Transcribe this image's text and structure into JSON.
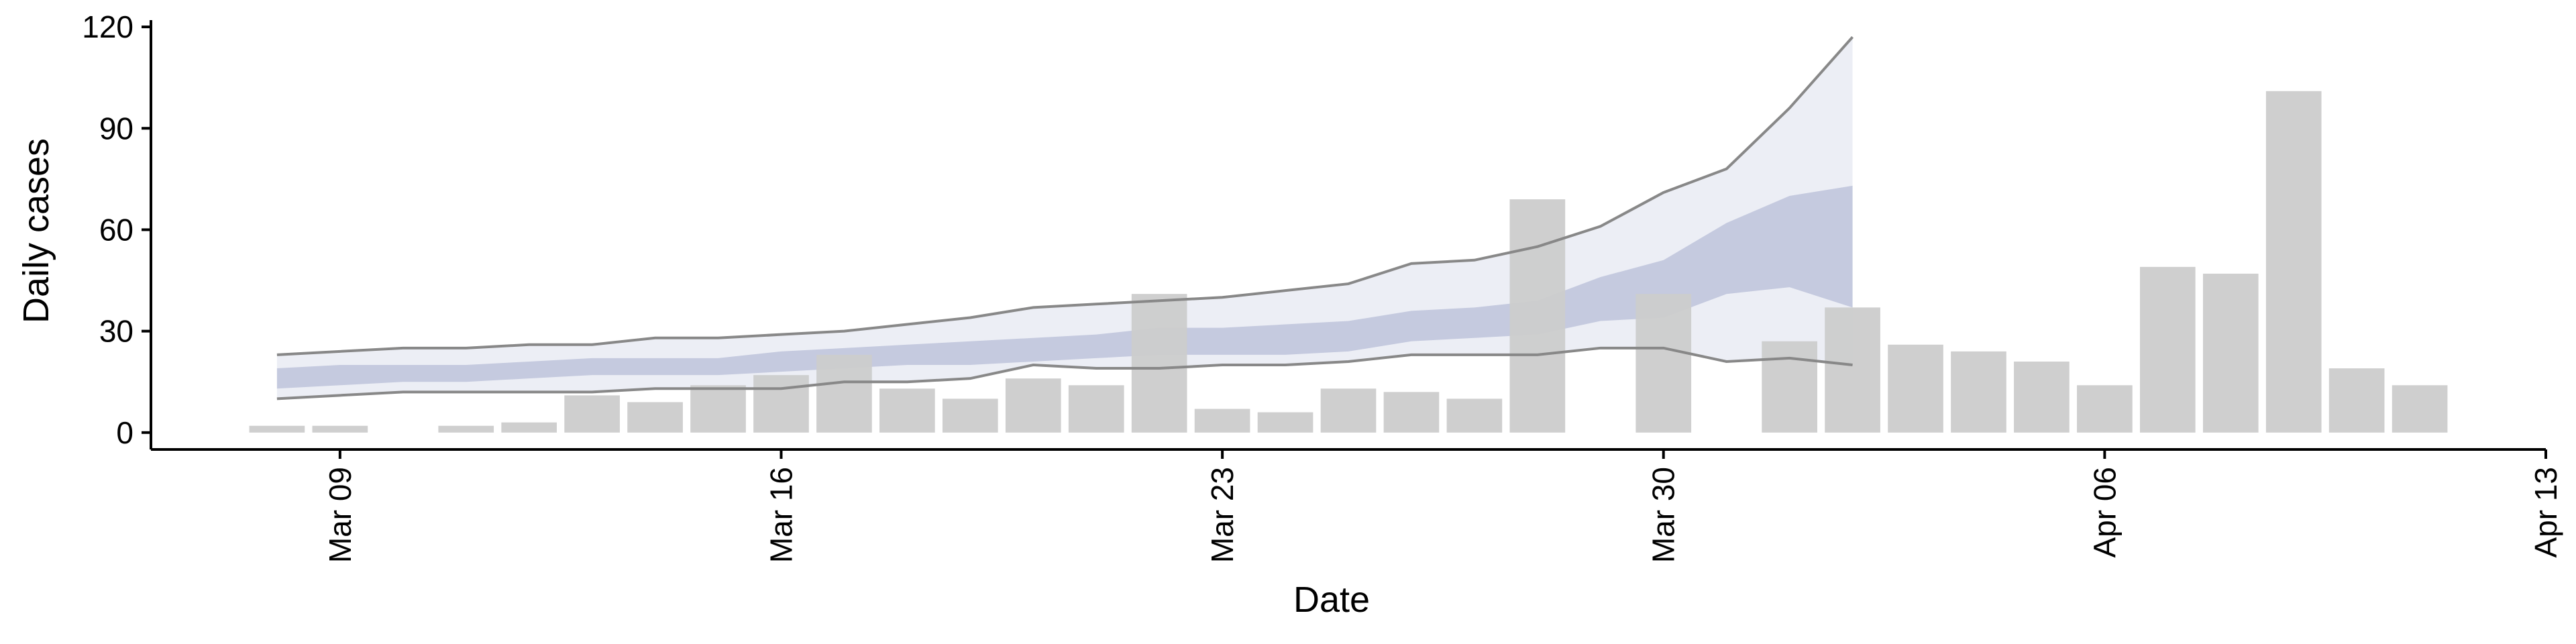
{
  "chart_data": {
    "type": "bar",
    "x_label": "Date",
    "y_label": "Daily cases",
    "x": [
      "Mar 08",
      "Mar 09",
      "Mar 10",
      "Mar 11",
      "Mar 12",
      "Mar 13",
      "Mar 14",
      "Mar 15",
      "Mar 16",
      "Mar 17",
      "Mar 18",
      "Mar 19",
      "Mar 20",
      "Mar 21",
      "Mar 22",
      "Mar 23",
      "Mar 24",
      "Mar 25",
      "Mar 26",
      "Mar 27",
      "Mar 28",
      "Mar 29",
      "Mar 30",
      "Mar 31",
      "Apr 01",
      "Apr 02",
      "Apr 03",
      "Apr 04",
      "Apr 05",
      "Apr 06",
      "Apr 07",
      "Apr 08",
      "Apr 09",
      "Apr 10",
      "Apr 11"
    ],
    "values": [
      2,
      2,
      0,
      2,
      3,
      11,
      9,
      14,
      17,
      23,
      13,
      10,
      16,
      14,
      41,
      7,
      6,
      13,
      12,
      10,
      69,
      0,
      41,
      0,
      27,
      37,
      26,
      24,
      21,
      14,
      49,
      47,
      101,
      19,
      14
    ],
    "color": "#cccccc",
    "band_x": [
      "Mar 08",
      "Mar 09",
      "Mar 10",
      "Mar 11",
      "Mar 12",
      "Mar 13",
      "Mar 14",
      "Mar 15",
      "Mar 16",
      "Mar 17",
      "Mar 18",
      "Mar 19",
      "Mar 20",
      "Mar 21",
      "Mar 22",
      "Mar 23",
      "Mar 24",
      "Mar 25",
      "Mar 26",
      "Mar 27",
      "Mar 28",
      "Mar 29",
      "Mar 30",
      "Mar 31",
      "Apr 01",
      "Apr 02"
    ],
    "bands": [
      {
        "lower": [
          10,
          11,
          12,
          12,
          12,
          12,
          13,
          13,
          13,
          15,
          15,
          16,
          20,
          19,
          19,
          20,
          20,
          21,
          23,
          23,
          23,
          25,
          25,
          21,
          22,
          20
        ],
        "upper": [
          23,
          24,
          25,
          25,
          26,
          26,
          28,
          28,
          29,
          30,
          32,
          34,
          37,
          38,
          39,
          40,
          42,
          44,
          50,
          51,
          55,
          61,
          71,
          78,
          96,
          117
        ],
        "color": "#eceef5",
        "line_color": "#888888"
      },
      {
        "lower": [
          13,
          14,
          15,
          15,
          16,
          17,
          17,
          17,
          18,
          19,
          20,
          20,
          21,
          22,
          23,
          23,
          23,
          24,
          27,
          28,
          29,
          33,
          34,
          41,
          43,
          37
        ],
        "upper": [
          19,
          20,
          20,
          20,
          21,
          22,
          22,
          22,
          24,
          25,
          26,
          27,
          28,
          29,
          31,
          31,
          32,
          33,
          36,
          37,
          39,
          46,
          51,
          62,
          70,
          73
        ],
        "color": "#c5cadf"
      }
    ],
    "xlim": [
      "Mar 06",
      "Apr 13"
    ],
    "xticks": [
      "Mar 09",
      "Mar 16",
      "Mar 23",
      "Mar 30",
      "Apr 06",
      "Apr 13"
    ],
    "ylim": [
      -5,
      122
    ],
    "yticks": [
      0,
      30,
      60,
      90,
      120
    ]
  }
}
